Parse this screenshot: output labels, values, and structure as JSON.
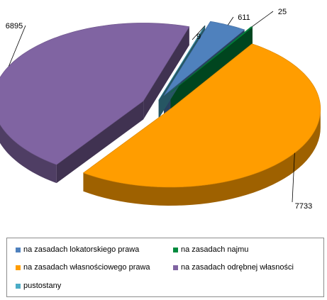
{
  "chart_data": {
    "type": "pie",
    "style": "3d-exploded",
    "title": "",
    "series": [
      {
        "name": "na zasadach lokatorskiego prawa",
        "value": 611,
        "label": "611",
        "color": "#4f81bd"
      },
      {
        "name": "na zasadach najmu",
        "value": 25,
        "label": "25",
        "color": "#008a3e"
      },
      {
        "name": "na zasadach własnościowego prawa",
        "value": 7733,
        "label": "7733",
        "color": "#ff9d00"
      },
      {
        "name": "na zasadach odrębnej własności",
        "value": 6895,
        "label": "6895",
        "color": "#8064a2"
      },
      {
        "name": "pustostany",
        "value": 9,
        "label": "9",
        "color": "#4bacc6"
      }
    ],
    "legend_position": "bottom"
  }
}
